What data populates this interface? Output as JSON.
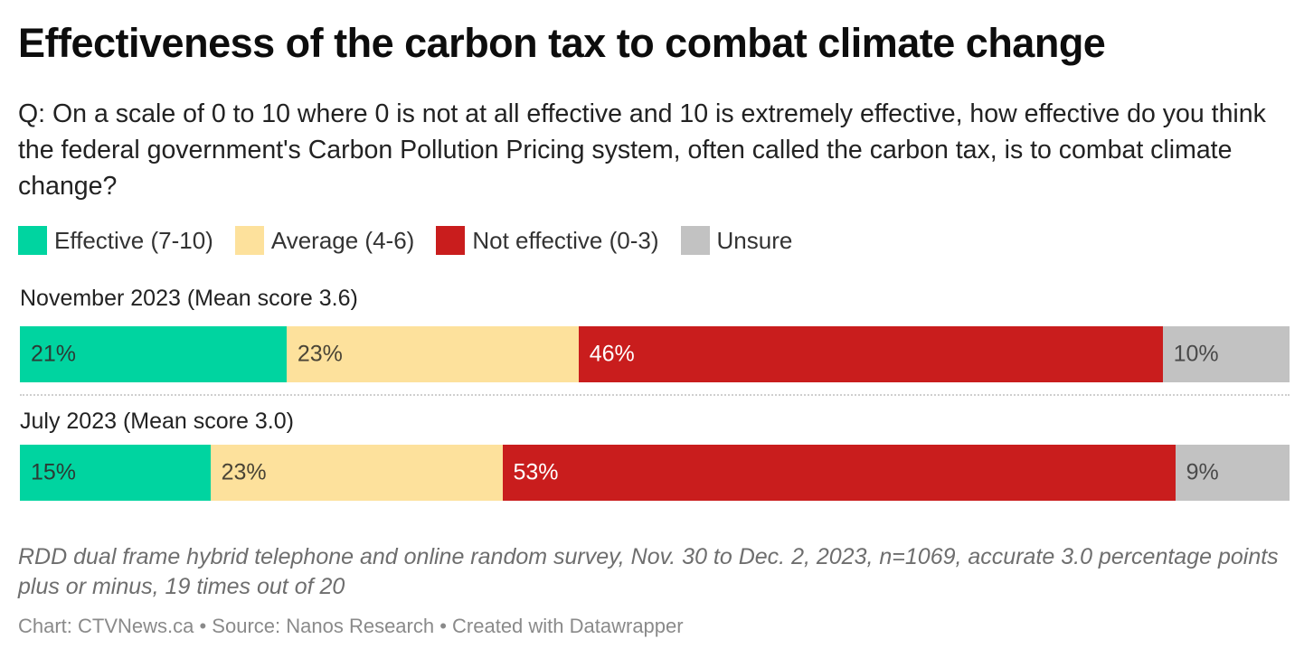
{
  "header": {
    "title": "Effectiveness of the carbon tax to combat climate change",
    "subtitle": "Q: On a scale of 0 to 10 where 0 is not at all effective and 10 is extremely effective, how effective do you think the federal government's Carbon Pollution Pricing system, often called the carbon tax, is to combat climate change?"
  },
  "legend": [
    {
      "label": "Effective (7-10)",
      "color": "#00d4a0"
    },
    {
      "label": "Average (4-6)",
      "color": "#fde19c"
    },
    {
      "label": "Not effective (0-3)",
      "color": "#c91d1d"
    },
    {
      "label": "Unsure",
      "color": "#c2c2c2"
    }
  ],
  "chart_data": {
    "type": "bar",
    "orientation": "horizontal-stacked",
    "title": "Effectiveness of the carbon tax to combat climate change",
    "categories": [
      "November 2023 (Mean score 3.6)",
      "July 2023 (Mean score 3.0)"
    ],
    "series": [
      {
        "name": "Effective (7-10)",
        "color": "#00d4a0",
        "label_color": "#2b3b35",
        "values": [
          21,
          15
        ]
      },
      {
        "name": "Average (4-6)",
        "color": "#fde19c",
        "label_color": "#4a4436",
        "values": [
          23,
          23
        ]
      },
      {
        "name": "Not effective (0-3)",
        "color": "#c91d1d",
        "label_color": "#ffffff",
        "values": [
          46,
          53
        ]
      },
      {
        "name": "Unsure",
        "color": "#c2c2c2",
        "label_color": "#4a4a4a",
        "values": [
          10,
          9
        ]
      }
    ],
    "value_suffix": "%",
    "xlim": [
      0,
      100
    ],
    "legend_position": "top-left",
    "grid": false
  },
  "footer": {
    "notes": "RDD dual frame hybrid telephone and online random survey, Nov. 30 to Dec. 2, 2023, n=1069, accurate 3.0 percentage points plus or minus, 19 times out of 20",
    "byline": "Chart: CTVNews.ca • Source: Nanos Research • Created with Datawrapper"
  }
}
